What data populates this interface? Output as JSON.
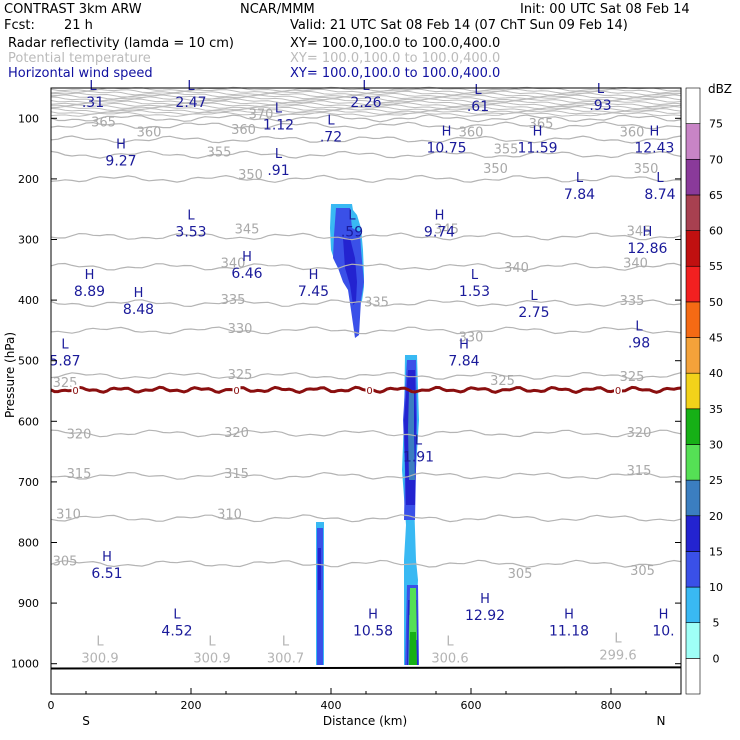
{
  "header": {
    "model": "CONTRAST  3km ARW",
    "org": "NCAR/MMM",
    "init": "Init: 00 UTC Sat 08 Feb 14",
    "fcst_label": "Fcst:",
    "fcst_value": "21 h",
    "valid": "Valid: 21 UTC Sat 08 Feb 14 (07 ChT Sun 09 Feb 14)",
    "fields": [
      {
        "name": "Radar reflectivity (lamda = 10 cm)",
        "xy": "XY=  100.0,100.0 to 100.0,400.0"
      },
      {
        "name": "Potential temperature",
        "xy": "XY=  100.0,100.0 to 100.0,400.0"
      },
      {
        "name": "Horizontal wind speed",
        "xy": "XY=  100.0,100.0 to 100.0,400.0"
      }
    ]
  },
  "chart_data": {
    "type": "contour",
    "xlabel": "Distance (km)",
    "ylabel": "Pressure (hPa)",
    "xlim": [
      0,
      900
    ],
    "ylim": [
      1050,
      50
    ],
    "x_ticks": [
      0,
      200,
      400,
      600,
      800
    ],
    "y_ticks": [
      100,
      200,
      300,
      400,
      500,
      600,
      700,
      800,
      900,
      1000
    ],
    "left_end_label": "S",
    "right_end_label": "N",
    "colorbar": {
      "unit": "dBZ",
      "levels": [
        0,
        5,
        10,
        15,
        20,
        25,
        30,
        35,
        40,
        45,
        50,
        55,
        60,
        65,
        70,
        75
      ],
      "colors": [
        "#ffffff",
        "#9ffff7",
        "#39b9f3",
        "#3a50e8",
        "#2323d0",
        "#3b7ec0",
        "#55e055",
        "#16b016",
        "#f2d21a",
        "#f4a23a",
        "#f56a14",
        "#f22020",
        "#c01010",
        "#a84050",
        "#8a3a9a",
        "#c884c6",
        "#ffffff"
      ]
    },
    "theta_contours": [
      {
        "value": 370,
        "p": 100
      },
      {
        "value": 365,
        "p": 112
      },
      {
        "value": 360,
        "p": 135
      },
      {
        "value": 355,
        "p": 160
      },
      {
        "value": 350,
        "p": 200
      },
      {
        "value": 345,
        "p": 295
      },
      {
        "value": 340,
        "p": 345
      },
      {
        "value": 335,
        "p": 405
      },
      {
        "value": 330,
        "p": 450
      },
      {
        "value": 325,
        "p": 525
      },
      {
        "value": 320,
        "p": 620
      },
      {
        "value": 315,
        "p": 690
      },
      {
        "value": 310,
        "p": 760
      },
      {
        "value": 305,
        "p": 835
      }
    ],
    "theta_labels": [
      {
        "x": 300,
        "p": 92,
        "text": "370"
      },
      {
        "x": 75,
        "p": 105,
        "text": "365"
      },
      {
        "x": 700,
        "p": 108,
        "text": "365"
      },
      {
        "x": 140,
        "p": 122,
        "text": "360"
      },
      {
        "x": 275,
        "p": 118,
        "text": "360"
      },
      {
        "x": 600,
        "p": 122,
        "text": "360"
      },
      {
        "x": 830,
        "p": 122,
        "text": "360"
      },
      {
        "x": 240,
        "p": 155,
        "text": "355"
      },
      {
        "x": 650,
        "p": 150,
        "text": "355"
      },
      {
        "x": 285,
        "p": 192,
        "text": "350"
      },
      {
        "x": 635,
        "p": 182,
        "text": "350"
      },
      {
        "x": 850,
        "p": 182,
        "text": "350"
      },
      {
        "x": 840,
        "p": 285,
        "text": "345"
      },
      {
        "x": 280,
        "p": 282,
        "text": "345"
      },
      {
        "x": 565,
        "p": 282,
        "text": "345"
      },
      {
        "x": 260,
        "p": 338,
        "text": "340"
      },
      {
        "x": 665,
        "p": 345,
        "text": "340"
      },
      {
        "x": 835,
        "p": 338,
        "text": "340"
      },
      {
        "x": 260,
        "p": 398,
        "text": "335"
      },
      {
        "x": 465,
        "p": 402,
        "text": "335"
      },
      {
        "x": 830,
        "p": 400,
        "text": "335"
      },
      {
        "x": 270,
        "p": 446,
        "text": "330"
      },
      {
        "x": 600,
        "p": 460,
        "text": "330"
      },
      {
        "x": 270,
        "p": 522,
        "text": "325"
      },
      {
        "x": 20,
        "p": 535,
        "text": "325"
      },
      {
        "x": 645,
        "p": 532,
        "text": "325"
      },
      {
        "x": 830,
        "p": 525,
        "text": "325"
      },
      {
        "x": 40,
        "p": 620,
        "text": "320"
      },
      {
        "x": 265,
        "p": 618,
        "text": "320"
      },
      {
        "x": 840,
        "p": 618,
        "text": "320"
      },
      {
        "x": 40,
        "p": 685,
        "text": "315"
      },
      {
        "x": 265,
        "p": 685,
        "text": "315"
      },
      {
        "x": 840,
        "p": 680,
        "text": "315"
      },
      {
        "x": 25,
        "p": 752,
        "text": "310"
      },
      {
        "x": 255,
        "p": 752,
        "text": "310"
      },
      {
        "x": 20,
        "p": 830,
        "text": "305"
      },
      {
        "x": 670,
        "p": 850,
        "text": "305"
      },
      {
        "x": 845,
        "p": 845,
        "text": "305"
      }
    ],
    "zero_line_p": 548,
    "zero_labels": [
      {
        "x": 35,
        "text": "0"
      },
      {
        "x": 265,
        "text": "0"
      },
      {
        "x": 455,
        "text": "0"
      },
      {
        "x": 810,
        "text": "0"
      }
    ],
    "wind_extrema": [
      {
        "x": 60,
        "p": 73,
        "kind": "L",
        "value": ".31"
      },
      {
        "x": 200,
        "p": 73,
        "kind": "L",
        "value": "2.47"
      },
      {
        "x": 450,
        "p": 73,
        "kind": "L",
        "value": "2.26"
      },
      {
        "x": 610,
        "p": 80,
        "kind": "L",
        "value": ".61"
      },
      {
        "x": 785,
        "p": 78,
        "kind": "L",
        "value": ".93"
      },
      {
        "x": 325,
        "p": 110,
        "kind": "L",
        "value": "1.12"
      },
      {
        "x": 400,
        "p": 130,
        "kind": "L",
        "value": ".72"
      },
      {
        "x": 565,
        "p": 148,
        "kind": "H",
        "value": "10.75"
      },
      {
        "x": 695,
        "p": 148,
        "kind": "H",
        "value": "11.59"
      },
      {
        "x": 862,
        "p": 148,
        "kind": "H",
        "value": "12.43"
      },
      {
        "x": 100,
        "p": 170,
        "kind": "H",
        "value": "9.27"
      },
      {
        "x": 325,
        "p": 185,
        "kind": "L",
        "value": ".91"
      },
      {
        "x": 755,
        "p": 225,
        "kind": "L",
        "value": "7.84"
      },
      {
        "x": 870,
        "p": 225,
        "kind": "L",
        "value": "8.74"
      },
      {
        "x": 200,
        "p": 287,
        "kind": "L",
        "value": "3.53"
      },
      {
        "x": 430,
        "p": 287,
        "kind": "L",
        "value": ".59"
      },
      {
        "x": 555,
        "p": 287,
        "kind": "H",
        "value": "9.74"
      },
      {
        "x": 852,
        "p": 314,
        "kind": "H",
        "value": "12.86"
      },
      {
        "x": 280,
        "p": 355,
        "kind": "H",
        "value": "6.46"
      },
      {
        "x": 55,
        "p": 385,
        "kind": "H",
        "value": "8.89"
      },
      {
        "x": 375,
        "p": 385,
        "kind": "H",
        "value": "7.45"
      },
      {
        "x": 605,
        "p": 385,
        "kind": "L",
        "value": "1.53"
      },
      {
        "x": 125,
        "p": 415,
        "kind": "H",
        "value": "8.48"
      },
      {
        "x": 690,
        "p": 420,
        "kind": "L",
        "value": "2.75"
      },
      {
        "x": 840,
        "p": 470,
        "kind": "L",
        "value": ".98"
      },
      {
        "x": 20,
        "p": 500,
        "kind": "L",
        "value": "5.87"
      },
      {
        "x": 590,
        "p": 500,
        "kind": "H",
        "value": "7.84"
      },
      {
        "x": 525,
        "p": 658,
        "kind": "L",
        "value": "1.91"
      },
      {
        "x": 80,
        "p": 850,
        "kind": "H",
        "value": "6.51"
      },
      {
        "x": 620,
        "p": 920,
        "kind": "H",
        "value": "12.92"
      },
      {
        "x": 180,
        "p": 945,
        "kind": "L",
        "value": "4.52"
      },
      {
        "x": 460,
        "p": 945,
        "kind": "H",
        "value": "10.58"
      },
      {
        "x": 740,
        "p": 945,
        "kind": "H",
        "value": "11.18"
      },
      {
        "x": 875,
        "p": 945,
        "kind": "H",
        "value": "10."
      }
    ],
    "theta_extrema": [
      {
        "x": 70,
        "p": 990,
        "kind": "L",
        "value": "300.9"
      },
      {
        "x": 230,
        "p": 990,
        "kind": "L",
        "value": "300.9"
      },
      {
        "x": 335,
        "p": 990,
        "kind": "L",
        "value": "300.7"
      },
      {
        "x": 570,
        "p": 990,
        "kind": "L",
        "value": "300.6"
      },
      {
        "x": 810,
        "p": 985,
        "kind": "L",
        "value": "299.6"
      }
    ],
    "reflectivity_cells": [
      {
        "name": "upper-cell",
        "levels": [
          5,
          10,
          15
        ],
        "x_center": 430,
        "p_top": 235,
        "p_bottom": 455,
        "dbz_max": 15
      },
      {
        "name": "low-left-cell",
        "levels": [
          5,
          10,
          15
        ],
        "x_center": 383,
        "p_top": 770,
        "p_bottom": 1000,
        "dbz_max": 15
      },
      {
        "name": "central-column",
        "levels": [
          5,
          10,
          15,
          20,
          25,
          30
        ],
        "x_center": 517,
        "p_top": 500,
        "p_bottom": 1005,
        "dbz_max": 30
      }
    ]
  }
}
